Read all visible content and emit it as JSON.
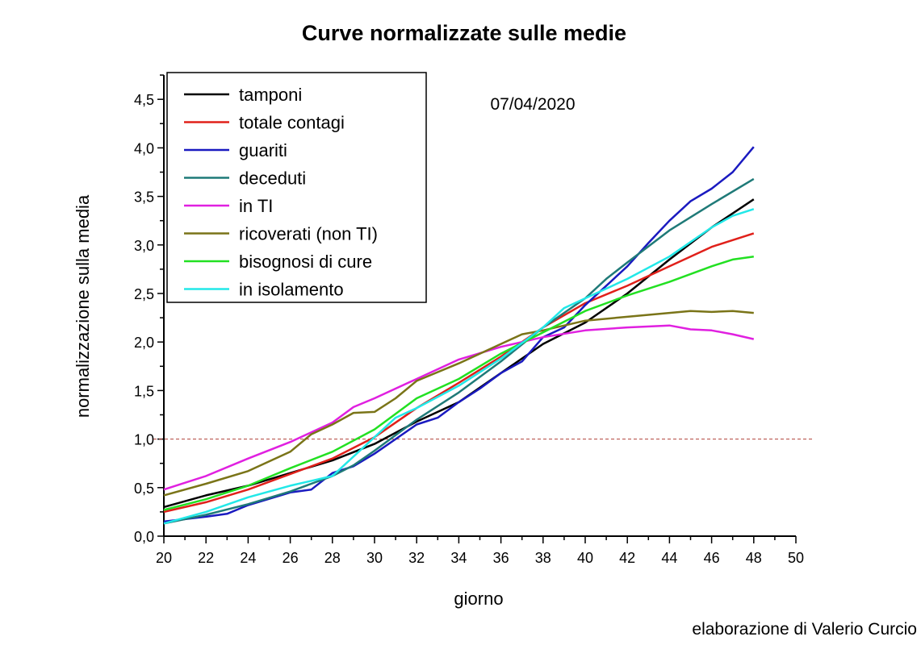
{
  "chart_data": {
    "type": "line",
    "title": "Curve normalizzate sulle medie",
    "xlabel": "giorno",
    "ylabel": "normalizzazione sulla media",
    "annotation": "07/04/2020",
    "credit": "elaborazione di Valerio Curcio",
    "xlim": [
      20,
      50
    ],
    "ylim": [
      0,
      4.75
    ],
    "xticks": [
      20,
      22,
      24,
      26,
      28,
      30,
      32,
      34,
      36,
      38,
      40,
      42,
      44,
      46,
      48,
      50
    ],
    "yticks": [
      0,
      0.5,
      1,
      1.5,
      2,
      2.5,
      3,
      3.5,
      4,
      4.5
    ],
    "ytick_labels": [
      "0,0",
      "0,5",
      "1,0",
      "1,5",
      "2,0",
      "2,5",
      "3,0",
      "3,5",
      "4,0",
      "4,5"
    ],
    "reference_line": {
      "y": 1.0,
      "color": "#b0403a",
      "style": "dashed"
    },
    "legend_position": "top-left",
    "grid": false,
    "series": [
      {
        "name": "tamponi",
        "color": "#000000",
        "x": [
          20,
          22,
          24,
          26,
          28,
          30,
          32,
          34,
          36,
          38,
          40,
          42,
          44,
          46,
          48
        ],
        "y": [
          0.3,
          0.42,
          0.52,
          0.65,
          0.78,
          0.95,
          1.18,
          1.38,
          1.68,
          1.98,
          2.2,
          2.5,
          2.85,
          3.18,
          3.47
        ]
      },
      {
        "name": "totale contagi",
        "color": "#e0201a",
        "x": [
          20,
          22,
          24,
          26,
          28,
          30,
          32,
          34,
          36,
          38,
          40,
          42,
          44,
          46,
          48
        ],
        "y": [
          0.25,
          0.35,
          0.48,
          0.64,
          0.8,
          1.02,
          1.32,
          1.58,
          1.85,
          2.15,
          2.4,
          2.58,
          2.78,
          2.98,
          3.12
        ]
      },
      {
        "name": "guariti",
        "color": "#1a1ac0",
        "x": [
          20,
          22,
          23,
          24,
          26,
          27,
          28,
          29,
          30,
          31,
          32,
          33,
          34,
          35,
          36,
          37,
          38,
          39,
          40,
          41,
          42,
          43,
          44,
          45,
          46,
          47,
          48
        ],
        "y": [
          0.15,
          0.2,
          0.23,
          0.32,
          0.45,
          0.48,
          0.65,
          0.72,
          0.85,
          1.0,
          1.15,
          1.22,
          1.38,
          1.52,
          1.68,
          1.8,
          2.05,
          2.15,
          2.38,
          2.58,
          2.78,
          3.02,
          3.25,
          3.45,
          3.58,
          3.75,
          4.01
        ]
      },
      {
        "name": "deceduti",
        "color": "#1f7a78",
        "x": [
          20,
          22,
          24,
          26,
          28,
          29,
          30,
          32,
          34,
          36,
          38,
          40,
          41,
          42,
          44,
          46,
          48
        ],
        "y": [
          0.13,
          0.22,
          0.33,
          0.46,
          0.62,
          0.73,
          0.88,
          1.2,
          1.48,
          1.8,
          2.15,
          2.45,
          2.65,
          2.82,
          3.15,
          3.42,
          3.68
        ]
      },
      {
        "name": "in TI",
        "color": "#e020e0",
        "x": [
          20,
          22,
          24,
          26,
          28,
          29,
          30,
          32,
          34,
          36,
          38,
          40,
          42,
          44,
          45,
          46,
          47,
          48
        ],
        "y": [
          0.48,
          0.62,
          0.8,
          0.97,
          1.17,
          1.33,
          1.42,
          1.62,
          1.82,
          1.95,
          2.05,
          2.12,
          2.15,
          2.17,
          2.13,
          2.12,
          2.08,
          2.03
        ]
      },
      {
        "name": "ricoverati (non TI)",
        "color": "#7a7418",
        "x": [
          20,
          22,
          24,
          26,
          27,
          28,
          29,
          30,
          31,
          32,
          34,
          36,
          37,
          38,
          40,
          42,
          44,
          45,
          46,
          47,
          48
        ],
        "y": [
          0.42,
          0.54,
          0.67,
          0.87,
          1.05,
          1.15,
          1.27,
          1.28,
          1.42,
          1.6,
          1.78,
          1.98,
          2.08,
          2.12,
          2.22,
          2.26,
          2.3,
          2.32,
          2.31,
          2.32,
          2.3
        ]
      },
      {
        "name": "bisognosi di cure",
        "color": "#22e022",
        "x": [
          20,
          22,
          24,
          26,
          28,
          30,
          32,
          34,
          36,
          38,
          40,
          42,
          44,
          46,
          47,
          48
        ],
        "y": [
          0.27,
          0.38,
          0.52,
          0.7,
          0.87,
          1.1,
          1.42,
          1.62,
          1.88,
          2.1,
          2.32,
          2.48,
          2.62,
          2.78,
          2.85,
          2.88
        ]
      },
      {
        "name": "in isolamento",
        "color": "#22e8e8",
        "x": [
          20,
          22,
          24,
          26,
          28,
          30,
          31,
          32,
          34,
          36,
          38,
          39,
          40,
          42,
          44,
          46,
          47,
          48
        ],
        "y": [
          0.13,
          0.25,
          0.4,
          0.52,
          0.62,
          1.02,
          1.22,
          1.32,
          1.55,
          1.83,
          2.15,
          2.35,
          2.45,
          2.65,
          2.88,
          3.18,
          3.3,
          3.37
        ]
      }
    ]
  }
}
